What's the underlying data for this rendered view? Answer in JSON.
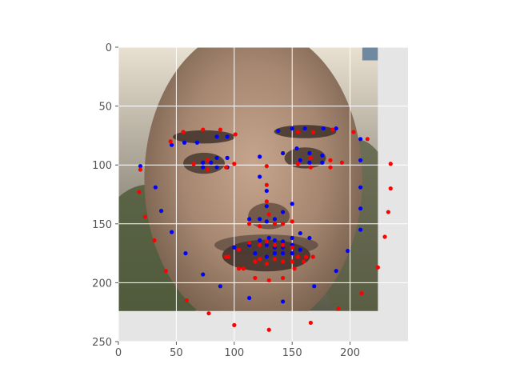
{
  "chart_data": {
    "type": "scatter",
    "title": "",
    "xlabel": "",
    "ylabel": "",
    "xlim": [
      0,
      250
    ],
    "ylim": [
      250,
      0
    ],
    "y_inverted": true,
    "grid": true,
    "legend": "none",
    "background_image": "grayscale-face-photo",
    "image_extent": {
      "x": [
        0,
        224
      ],
      "y": [
        0,
        224
      ]
    },
    "xticks": [
      0,
      50,
      100,
      150,
      200
    ],
    "yticks": [
      0,
      50,
      100,
      150,
      200,
      250
    ],
    "series": [
      {
        "color": "#0000ff",
        "points": [
          [
            19,
            101
          ],
          [
            32,
            119
          ],
          [
            37,
            139
          ],
          [
            46,
            157
          ],
          [
            58,
            175
          ],
          [
            73,
            193
          ],
          [
            88,
            203
          ],
          [
            113,
            213
          ],
          [
            142,
            216
          ],
          [
            169,
            203
          ],
          [
            188,
            190
          ],
          [
            198,
            173
          ],
          [
            209,
            155
          ],
          [
            209,
            137
          ],
          [
            209,
            119
          ],
          [
            209,
            96
          ],
          [
            209,
            78
          ],
          [
            46,
            83
          ],
          [
            57,
            81
          ],
          [
            68,
            81
          ],
          [
            85,
            76
          ],
          [
            94,
            76
          ],
          [
            138,
            71
          ],
          [
            150,
            69
          ],
          [
            161,
            69
          ],
          [
            177,
            69
          ],
          [
            188,
            69
          ],
          [
            73,
            98
          ],
          [
            85,
            94
          ],
          [
            94,
            94
          ],
          [
            80,
            98
          ],
          [
            73,
            102
          ],
          [
            85,
            102
          ],
          [
            94,
            102
          ],
          [
            122,
            93
          ],
          [
            142,
            90
          ],
          [
            154,
            86
          ],
          [
            165,
            90
          ],
          [
            176,
            92
          ],
          [
            157,
            96
          ],
          [
            165,
            98
          ],
          [
            176,
            98
          ],
          [
            122,
            110
          ],
          [
            128,
            122
          ],
          [
            128,
            135
          ],
          [
            128,
            148
          ],
          [
            113,
            146
          ],
          [
            122,
            146
          ],
          [
            135,
            146
          ],
          [
            142,
            140
          ],
          [
            150,
            133
          ],
          [
            100,
            170
          ],
          [
            113,
            168
          ],
          [
            122,
            164
          ],
          [
            130,
            162
          ],
          [
            135,
            164
          ],
          [
            142,
            165
          ],
          [
            150,
            162
          ],
          [
            157,
            158
          ],
          [
            165,
            162
          ],
          [
            118,
            175
          ],
          [
            128,
            178
          ],
          [
            135,
            175
          ],
          [
            142,
            175
          ],
          [
            150,
            175
          ],
          [
            157,
            172
          ],
          [
            128,
            168
          ],
          [
            135,
            170
          ],
          [
            142,
            170
          ],
          [
            150,
            168
          ]
        ]
      },
      {
        "color": "#ff0000",
        "points": [
          [
            45,
            80
          ],
          [
            56,
            72
          ],
          [
            73,
            70
          ],
          [
            88,
            70
          ],
          [
            101,
            74
          ],
          [
            155,
            72
          ],
          [
            168,
            72
          ],
          [
            185,
            70
          ],
          [
            203,
            72
          ],
          [
            215,
            78
          ],
          [
            19,
            104
          ],
          [
            18,
            123
          ],
          [
            23,
            144
          ],
          [
            31,
            164
          ],
          [
            41,
            190
          ],
          [
            59,
            215
          ],
          [
            78,
            226
          ],
          [
            100,
            236
          ],
          [
            130,
            240
          ],
          [
            166,
            234
          ],
          [
            190,
            222
          ],
          [
            210,
            209
          ],
          [
            224,
            187
          ],
          [
            230,
            161
          ],
          [
            233,
            140
          ],
          [
            235,
            120
          ],
          [
            235,
            99
          ],
          [
            65,
            99
          ],
          [
            77,
            96
          ],
          [
            100,
            99
          ],
          [
            77,
            104
          ],
          [
            93,
            102
          ],
          [
            155,
            99
          ],
          [
            166,
            94
          ],
          [
            183,
            96
          ],
          [
            166,
            102
          ],
          [
            183,
            102
          ],
          [
            193,
            98
          ],
          [
            128,
            101
          ],
          [
            128,
            117
          ],
          [
            128,
            131
          ],
          [
            130,
            142
          ],
          [
            113,
            150
          ],
          [
            122,
            152
          ],
          [
            135,
            150
          ],
          [
            142,
            150
          ],
          [
            150,
            148
          ],
          [
            95,
            178
          ],
          [
            104,
            172
          ],
          [
            113,
            166
          ],
          [
            122,
            168
          ],
          [
            128,
            165
          ],
          [
            135,
            168
          ],
          [
            142,
            168
          ],
          [
            150,
            170
          ],
          [
            155,
            178
          ],
          [
            162,
            178
          ],
          [
            168,
            178
          ],
          [
            108,
            188
          ],
          [
            118,
            196
          ],
          [
            130,
            198
          ],
          [
            142,
            196
          ],
          [
            152,
            188
          ],
          [
            160,
            182
          ],
          [
            118,
            182
          ],
          [
            128,
            184
          ],
          [
            135,
            180
          ],
          [
            142,
            182
          ],
          [
            150,
            182
          ],
          [
            93,
            178
          ],
          [
            104,
            188
          ],
          [
            122,
            180
          ]
        ]
      }
    ]
  }
}
